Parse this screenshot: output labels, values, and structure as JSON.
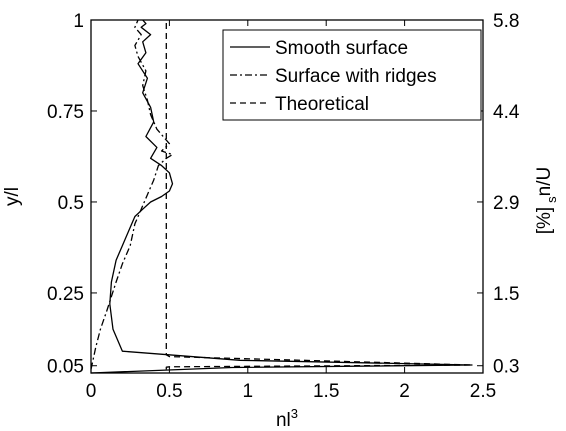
{
  "chart_data": {
    "type": "line",
    "xlabel": "nl",
    "xlabel_superscript": "3",
    "ylabel": "y/l",
    "ylabel_right": "n/U",
    "ylabel_right_subscript": "s",
    "ylabel_right_unit": "[%]",
    "xlim": [
      0,
      2.5
    ],
    "ylim": [
      0.03,
      1.0
    ],
    "grid": false,
    "legend_position": "top-right",
    "x_ticks": [
      {
        "value": 0,
        "label": "0"
      },
      {
        "value": 0.5,
        "label": "0.5"
      },
      {
        "value": 1,
        "label": "1"
      },
      {
        "value": 1.5,
        "label": "1.5"
      },
      {
        "value": 2,
        "label": "2"
      },
      {
        "value": 2.5,
        "label": "2.5"
      }
    ],
    "y_ticks": [
      {
        "value": 0.05,
        "label": "0.05"
      },
      {
        "value": 0.25,
        "label": "0.25"
      },
      {
        "value": 0.5,
        "label": "0.5"
      },
      {
        "value": 0.75,
        "label": "0.75"
      },
      {
        "value": 1,
        "label": "1"
      }
    ],
    "y_ticks_right": [
      {
        "value": 0.05,
        "label": "0.3"
      },
      {
        "value": 0.25,
        "label": "1.5"
      },
      {
        "value": 0.5,
        "label": "2.9"
      },
      {
        "value": 0.75,
        "label": "4.4"
      },
      {
        "value": 1,
        "label": "5.8"
      }
    ],
    "series": [
      {
        "name": "Smooth surface",
        "style": "solid",
        "x": [
          0.0,
          0.9,
          2.43,
          0.95,
          0.2,
          0.14,
          0.12,
          0.13,
          0.16,
          0.2,
          0.24,
          0.28,
          0.33,
          0.38,
          0.45,
          0.5,
          0.52,
          0.5,
          0.45,
          0.38,
          0.42,
          0.35,
          0.4,
          0.38,
          0.33,
          0.36,
          0.3,
          0.35,
          0.33,
          0.38,
          0.32,
          0.35,
          0.33
        ],
        "y": [
          0.03,
          0.045,
          0.052,
          0.065,
          0.09,
          0.15,
          0.22,
          0.28,
          0.34,
          0.38,
          0.42,
          0.46,
          0.48,
          0.5,
          0.515,
          0.53,
          0.55,
          0.58,
          0.6,
          0.62,
          0.65,
          0.68,
          0.72,
          0.76,
          0.8,
          0.84,
          0.88,
          0.91,
          0.94,
          0.96,
          0.98,
          0.99,
          1.0
        ]
      },
      {
        "name": "Surface with ridges",
        "style": "dashdot",
        "x": [
          0.0,
          0.03,
          0.06,
          0.1,
          0.13,
          0.16,
          0.2,
          0.25,
          0.28,
          0.32,
          0.36,
          0.4,
          0.43,
          0.48,
          0.52,
          0.45,
          0.5,
          0.42,
          0.38,
          0.36,
          0.33,
          0.35,
          0.3,
          0.28,
          0.32,
          0.28,
          0.3
        ],
        "y": [
          0.04,
          0.1,
          0.15,
          0.2,
          0.24,
          0.28,
          0.33,
          0.38,
          0.44,
          0.48,
          0.52,
          0.56,
          0.6,
          0.62,
          0.63,
          0.64,
          0.66,
          0.7,
          0.74,
          0.78,
          0.82,
          0.86,
          0.9,
          0.93,
          0.96,
          0.98,
          1.0
        ]
      },
      {
        "name": "Theoretical",
        "style": "dashed",
        "x": [
          0.48,
          0.48,
          0.5,
          2.43,
          0.5,
          0.48,
          0.48
        ],
        "y": [
          0.04,
          0.046,
          0.047,
          0.052,
          0.075,
          0.08,
          1.0
        ]
      }
    ]
  }
}
